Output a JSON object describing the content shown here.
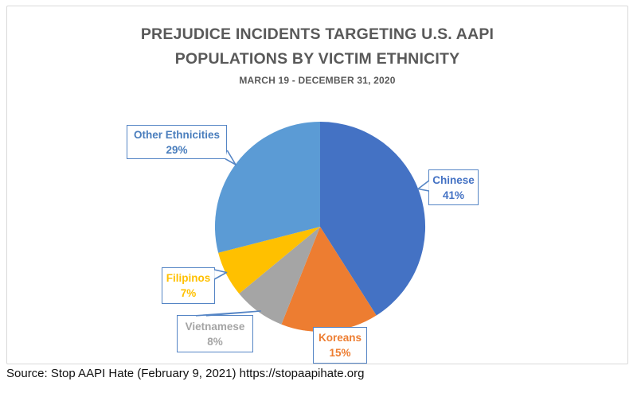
{
  "page": {
    "background": "#ffffff",
    "frame_border_color": "#d9d9d9"
  },
  "title": {
    "line1": "PREJUDICE INCIDENTS TARGETING U.S. AAPI",
    "line2": "POPULATIONS BY VICTIM ETHNICITY",
    "subtitle": "MARCH 19 - DECEMBER 31, 2020",
    "color": "#595959"
  },
  "source": {
    "text": "Source: Stop AAPI Hate (February 9, 2021) https://stopaapihate.org"
  },
  "callout_border_color": "#5585c5",
  "chart_data": {
    "type": "pie",
    "title": "PREJUDICE INCIDENTS TARGETING U.S. AAPI POPULATIONS BY VICTIM ETHNICITY",
    "subtitle": "MARCH 19 - DECEMBER 31, 2020",
    "start_angle_deg": 0,
    "direction": "clockwise",
    "legend": "none",
    "label_style": "callout-boxes",
    "slices": [
      {
        "label": "Chinese",
        "value": 41,
        "pct_text": "41%",
        "color": "#4472C4",
        "label_color": "#4472C4"
      },
      {
        "label": "Koreans",
        "value": 15,
        "pct_text": "15%",
        "color": "#ED7D31",
        "label_color": "#ED7D31"
      },
      {
        "label": "Vietnamese",
        "value": 8,
        "pct_text": "8%",
        "color": "#A5A5A5",
        "label_color": "#A5A5A5"
      },
      {
        "label": "Filipinos",
        "value": 7,
        "pct_text": "7%",
        "color": "#FFC000",
        "label_color": "#FFC000"
      },
      {
        "label": "Other Ethnicities",
        "value": 29,
        "pct_text": "29%",
        "color": "#5B9BD5",
        "label_color": "#4A7EBD"
      }
    ]
  }
}
